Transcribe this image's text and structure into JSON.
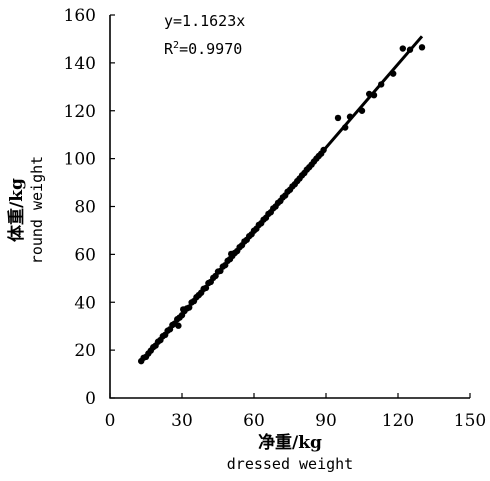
{
  "chart_data": {
    "type": "scatter",
    "title": "",
    "xlabel": "净重/kg",
    "xlabel_en": "dressed weight",
    "ylabel": "体重/kg",
    "ylabel_en": "round weight",
    "xlim": [
      0,
      150
    ],
    "ylim": [
      0,
      160
    ],
    "xticks": [
      "0",
      "30",
      "60",
      "90",
      "120",
      "150"
    ],
    "yticks": [
      "0",
      "20",
      "40",
      "60",
      "80",
      "100",
      "120",
      "140",
      "160"
    ],
    "grid": false,
    "legend": "none",
    "annotation": {
      "equation": "y=1.1623x",
      "r2_prefix": "R",
      "r2_sup": "2",
      "r2_value": "=0.9970"
    },
    "fit_line": {
      "slope": 1.1623,
      "x_range": [
        13,
        130
      ]
    },
    "series": [
      {
        "points": [
          [
            13,
            15.4
          ],
          [
            14,
            16.8
          ],
          [
            15,
            17.2
          ],
          [
            16,
            18.6
          ],
          [
            17,
            19.8
          ],
          [
            18,
            21.2
          ],
          [
            19,
            21.9
          ],
          [
            20,
            23.5
          ],
          [
            21,
            24.2
          ],
          [
            22,
            25.8
          ],
          [
            23,
            26.4
          ],
          [
            24,
            28.1
          ],
          [
            25,
            28.7
          ],
          [
            26,
            30.5
          ],
          [
            27,
            31.1
          ],
          [
            28,
            32.9
          ],
          [
            28.5,
            30.2
          ],
          [
            29,
            33.6
          ],
          [
            30,
            34.6
          ],
          [
            30.5,
            37.0
          ],
          [
            31,
            36.3
          ],
          [
            32,
            37.4
          ],
          [
            33,
            37.8
          ],
          [
            34,
            39.9
          ],
          [
            35,
            40.5
          ],
          [
            36,
            42.1
          ],
          [
            37,
            43.0
          ],
          [
            38,
            44.0
          ],
          [
            39,
            45.6
          ],
          [
            40,
            46.0
          ],
          [
            41,
            48.0
          ],
          [
            42,
            48.5
          ],
          [
            43,
            50.2
          ],
          [
            44,
            51.0
          ],
          [
            45,
            52.8
          ],
          [
            46,
            53.1
          ],
          [
            47,
            54.9
          ],
          [
            48,
            55.5
          ],
          [
            49,
            57.3
          ],
          [
            50,
            58.0
          ],
          [
            50.5,
            60.2
          ],
          [
            51,
            59.4
          ],
          [
            52,
            60.6
          ],
          [
            53,
            61.4
          ],
          [
            54,
            63.0
          ],
          [
            55,
            63.8
          ],
          [
            56,
            65.4
          ],
          [
            57,
            66.1
          ],
          [
            58,
            67.6
          ],
          [
            59,
            68.4
          ],
          [
            60,
            69.9
          ],
          [
            61,
            70.7
          ],
          [
            62,
            72.3
          ],
          [
            63,
            73.0
          ],
          [
            64,
            74.5
          ],
          [
            65,
            75.3
          ],
          [
            66,
            76.9
          ],
          [
            67,
            77.6
          ],
          [
            68,
            79.2
          ],
          [
            69,
            80.0
          ],
          [
            70,
            81.5
          ],
          [
            71,
            82.3
          ],
          [
            72,
            83.8
          ],
          [
            73,
            84.6
          ],
          [
            74,
            86.2
          ],
          [
            75,
            87.0
          ],
          [
            76,
            88.4
          ],
          [
            77,
            89.3
          ],
          [
            78,
            90.6
          ],
          [
            79,
            91.7
          ],
          [
            80,
            93.0
          ],
          [
            81,
            94.0
          ],
          [
            82,
            95.4
          ],
          [
            83,
            96.4
          ],
          [
            84,
            97.5
          ],
          [
            85,
            98.8
          ],
          [
            86,
            100.0
          ],
          [
            87,
            101.1
          ],
          [
            88,
            102.1
          ],
          [
            89,
            103.6
          ],
          [
            95,
            117.0
          ],
          [
            98,
            113.0
          ],
          [
            100,
            117.5
          ],
          [
            105,
            120.0
          ],
          [
            108,
            127.0
          ],
          [
            110,
            126.5
          ],
          [
            113,
            131.0
          ],
          [
            118,
            135.5
          ],
          [
            122,
            146.0
          ],
          [
            125,
            145.5
          ],
          [
            130,
            146.5
          ]
        ]
      }
    ]
  }
}
